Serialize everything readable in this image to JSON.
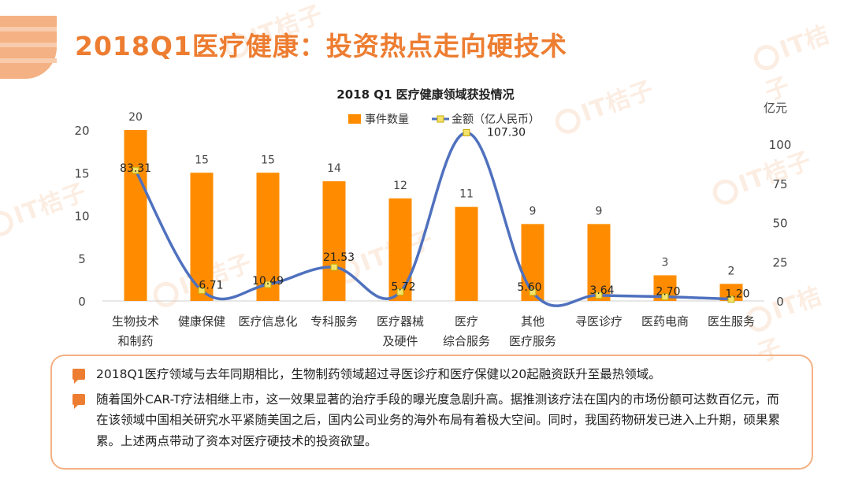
{
  "page": {
    "title": "2018Q1医疗健康：投资热点走向硬技术"
  },
  "watermark": {
    "text": "IT桔子",
    "color": "#f6b07d"
  },
  "chart_data": {
    "type": "bar+line",
    "title": "2018 Q1 医疗健康领域获投情况",
    "categories": [
      [
        "生物技术",
        "和制药"
      ],
      [
        "健康保健"
      ],
      [
        "医疗信息化"
      ],
      [
        "专科服务"
      ],
      [
        "医疗器械",
        "及硬件"
      ],
      [
        "医疗",
        "综合服务"
      ],
      [
        "其他",
        "医疗服务"
      ],
      [
        "寻医诊疗"
      ],
      [
        "医药电商"
      ],
      [
        "医生服务"
      ]
    ],
    "series": [
      {
        "name": "事件数量",
        "type": "bar",
        "axis": "left",
        "color": "#ff8c00",
        "values": [
          20,
          15,
          15,
          14,
          12,
          11,
          9,
          9,
          3,
          2
        ],
        "labels": [
          "20",
          "15",
          "15",
          "14",
          "12",
          "11",
          "9",
          "9",
          "3",
          "2"
        ]
      },
      {
        "name": "金额（亿人民币）",
        "type": "line",
        "axis": "right",
        "color": "#4f71be",
        "values": [
          83.31,
          6.71,
          10.49,
          21.53,
          5.72,
          107.3,
          5.6,
          3.64,
          2.7,
          1.2
        ],
        "labels": [
          "83.31",
          "6.71",
          "10.49",
          "21.53",
          "5.72",
          "107.30",
          "5.60",
          "3.64",
          "2.70",
          "1.20"
        ]
      }
    ],
    "y_left": {
      "ylim": [
        0,
        20
      ],
      "ticks": [
        "0",
        "5",
        "10",
        "15",
        "20"
      ]
    },
    "y_right": {
      "unit": "亿元",
      "ylim": [
        0,
        100
      ],
      "ticks": [
        "0",
        "25",
        "50",
        "75",
        "100"
      ]
    },
    "legend": {
      "position": "top-center",
      "items": [
        "事件数量",
        "金额（亿人民币）"
      ]
    },
    "grid": false
  },
  "notes": [
    "2018Q1医疗领域与去年同期相比，生物制药领域超过寻医诊疗和医疗保健以20起融资跃升至最热领域。",
    "随着国外CAR-T疗法相继上市，这一效果显著的治疗手段的曝光度急剧升高。据推测该疗法在国内的市场份额可达数百亿元，而在该领域中国相关研究水平紧随美国之后，国内公司业务的海外布局有着极大空间。同时，我国药物研发已进入上升期，硕果累累。上述两点带动了资本对医疗硬技术的投资欲望。"
  ]
}
